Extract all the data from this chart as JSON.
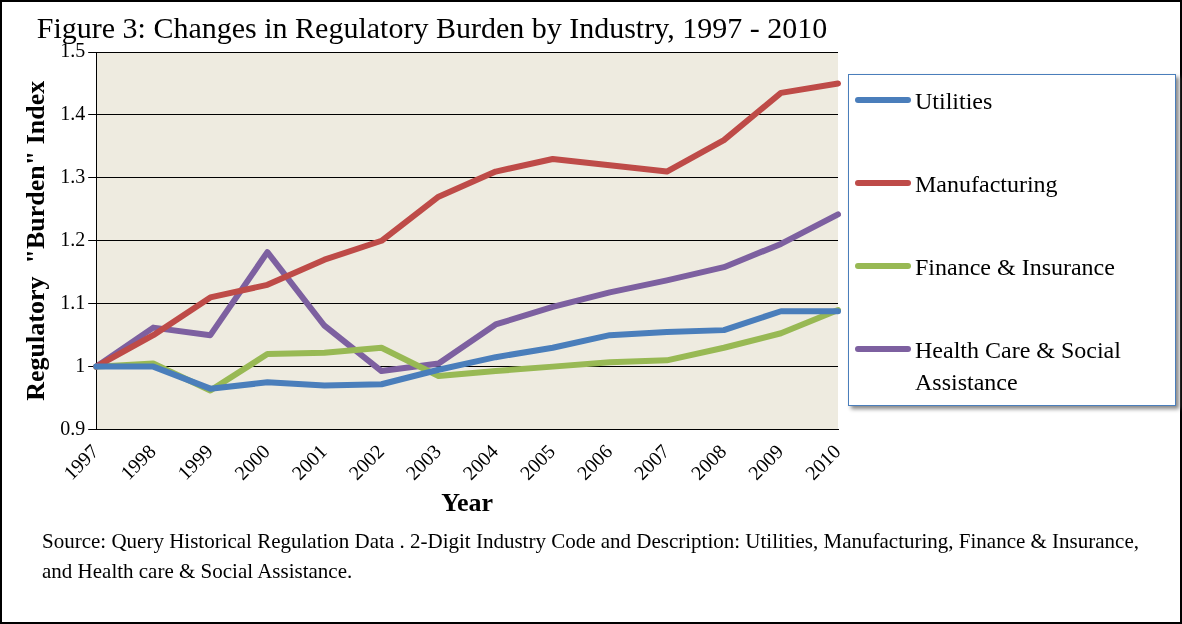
{
  "chart_data": {
    "type": "line",
    "title": "Figure 3: Changes in Regulatory Burden by Industry, 1997 - 2010",
    "xlabel": "Year",
    "ylabel": "Regulatory  \"Burden\" Index",
    "categories": [
      "1997",
      "1998",
      "1999",
      "2000",
      "2001",
      "2002",
      "2003",
      "2004",
      "2005",
      "2006",
      "2007",
      "2008",
      "2009",
      "2010"
    ],
    "series": [
      {
        "name": "Utilities",
        "color": "#4a7ebb",
        "values": [
          1.0,
          1.0,
          0.965,
          0.975,
          0.97,
          0.972,
          0.995,
          1.015,
          1.03,
          1.05,
          1.055,
          1.058,
          1.088,
          1.088
        ]
      },
      {
        "name": "Manufacturing",
        "color": "#be4b48",
        "values": [
          1.0,
          1.05,
          1.11,
          1.13,
          1.17,
          1.2,
          1.27,
          1.31,
          1.33,
          1.32,
          1.31,
          1.36,
          1.435,
          1.45
        ]
      },
      {
        "name": "Finance & Insurance",
        "color": "#98b954",
        "values": [
          1.0,
          1.005,
          0.962,
          1.02,
          1.022,
          1.03,
          0.985,
          0.993,
          1.0,
          1.007,
          1.01,
          1.03,
          1.053,
          1.09
        ]
      },
      {
        "name": "Health Care & Social Assistance",
        "color": "#7d60a0",
        "values": [
          1.0,
          1.062,
          1.05,
          1.182,
          1.065,
          0.993,
          1.005,
          1.067,
          1.095,
          1.118,
          1.137,
          1.158,
          1.195,
          1.242
        ]
      }
    ],
    "ylim": [
      0.9,
      1.5
    ],
    "yticks": [
      0.9,
      1,
      1.1,
      1.2,
      1.3,
      1.4,
      1.5
    ],
    "grid": "y",
    "legend": "right",
    "marker": "none",
    "line_style": "solid",
    "annotations": [
      "Source: Query Historical Regulation Data . 2-Digit Industry Code and Description: Utilities, Manufacturing, Finance & Insurance, and Health care & Social Assistance."
    ]
  }
}
